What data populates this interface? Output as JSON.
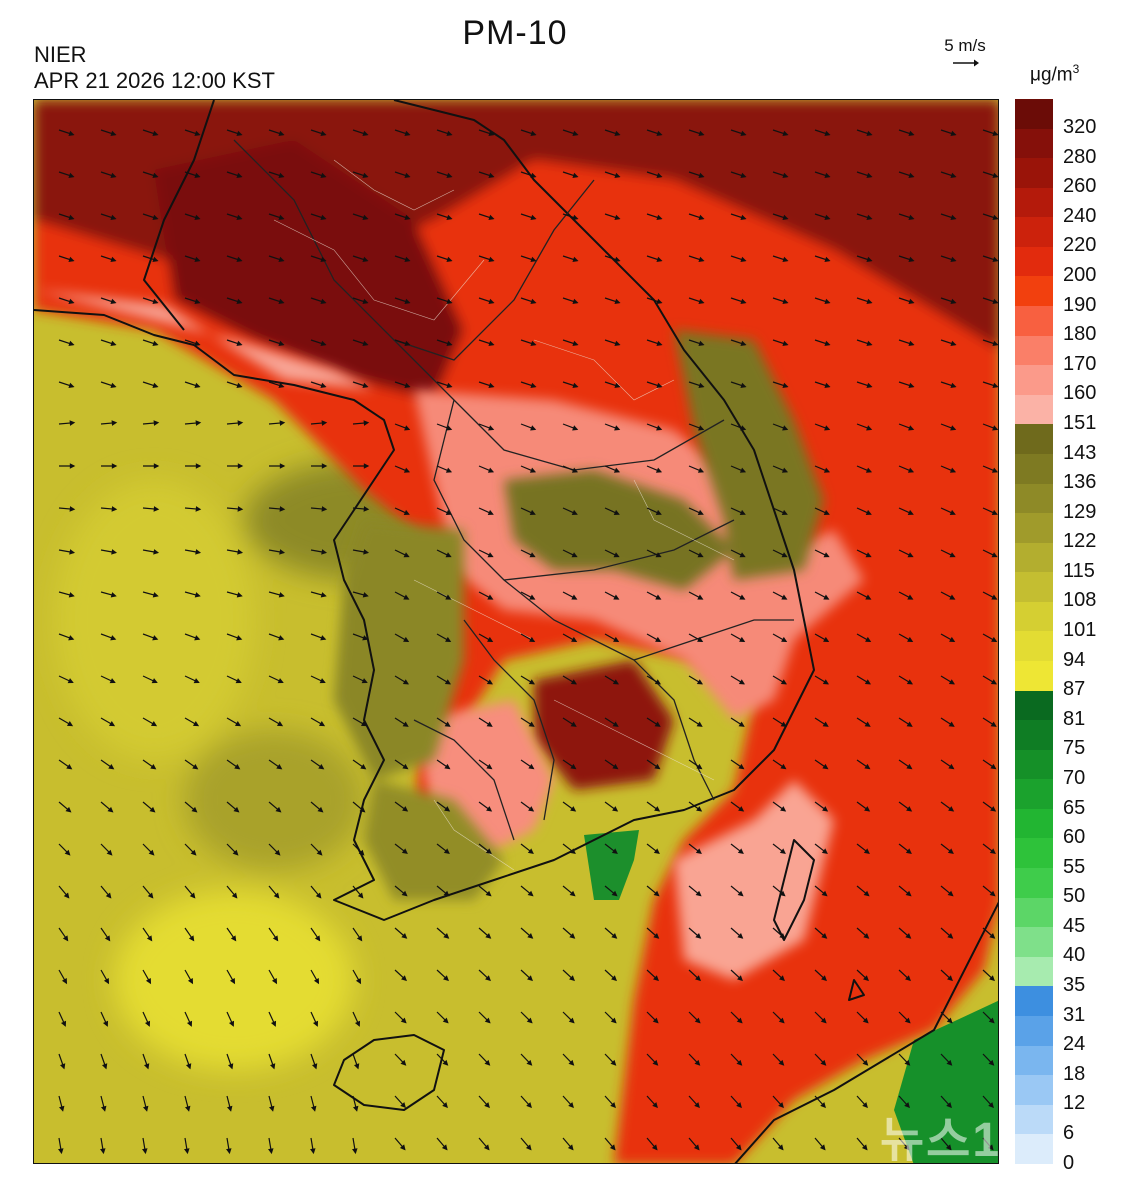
{
  "header": {
    "title": "PM-10",
    "agency": "NIER",
    "datetime": "APR 21 2026 12:00 KST",
    "wind_reference": "5 m/s",
    "unit": "μg/m",
    "unit_sup": "3"
  },
  "legend": {
    "ticks": [
      "320",
      "280",
      "260",
      "240",
      "220",
      "200",
      "190",
      "180",
      "170",
      "160",
      "151",
      "143",
      "136",
      "129",
      "122",
      "115",
      "108",
      "101",
      "94",
      "87",
      "81",
      "75",
      "70",
      "65",
      "60",
      "55",
      "50",
      "45",
      "40",
      "35",
      "31",
      "24",
      "18",
      "12",
      "6",
      "0"
    ],
    "colors": [
      "#6b0c07",
      "#85100a",
      "#9a1409",
      "#b41a0b",
      "#cc220c",
      "#e22b0d",
      "#f2400e",
      "#f86040",
      "#fa7f68",
      "#fb9a8a",
      "#fbb2a6",
      "#6f6a1c",
      "#7e7a22",
      "#8e8a27",
      "#a09b2b",
      "#b3ae2f",
      "#c4be31",
      "#d5cf32",
      "#e3dc33",
      "#eee634",
      "#0a6a20",
      "#0f7d24",
      "#159028",
      "#1ba22d",
      "#22b532",
      "#2ec23a",
      "#3fcc4b",
      "#5cd667",
      "#7fe08a",
      "#a7ebaf",
      "#3d8fe0",
      "#5aa2e8",
      "#7ab6ef",
      "#9ac8f4",
      "#bbdaf8",
      "#dcecfb"
    ]
  },
  "watermark": "뉴스1"
}
